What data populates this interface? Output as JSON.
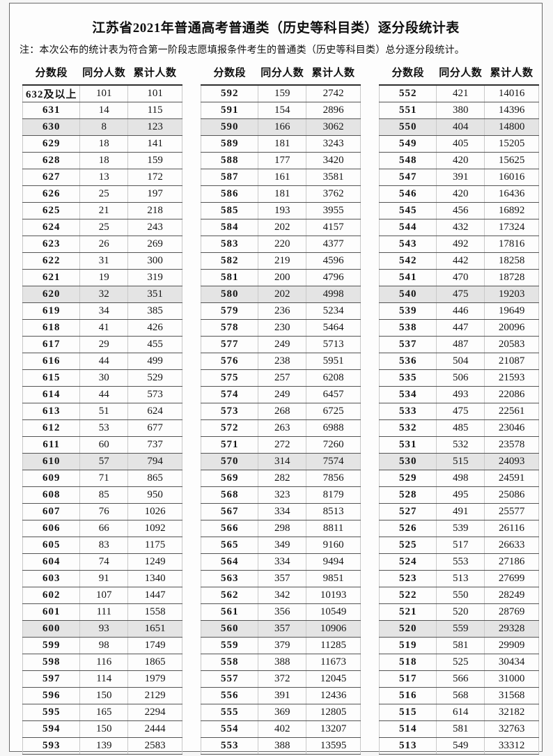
{
  "title": "江苏省2021年普通高考普通类（历史等科目类）逐分段统计表",
  "note": "注：本次公布的统计表为符合第一阶段志愿填报条件考生的普通类（历史等科目类）总分逐分段统计。",
  "columns": [
    "分数段",
    "同分人数",
    "累计人数"
  ],
  "colors": {
    "shaded_row": "#e4e4e4",
    "row_line": "#545454",
    "frame_border": "#6a6a6a",
    "text": "#141414"
  },
  "groups": [
    {
      "rows": [
        [
          "632及以上",
          101,
          101
        ],
        [
          "631",
          14,
          115
        ],
        [
          "630",
          8,
          123
        ],
        [
          "629",
          18,
          141
        ],
        [
          "628",
          18,
          159
        ],
        [
          "627",
          13,
          172
        ],
        [
          "626",
          25,
          197
        ],
        [
          "625",
          21,
          218
        ],
        [
          "624",
          25,
          243
        ],
        [
          "623",
          26,
          269
        ],
        [
          "622",
          31,
          300
        ],
        [
          "621",
          19,
          319
        ],
        [
          "620",
          32,
          351
        ],
        [
          "619",
          34,
          385
        ],
        [
          "618",
          41,
          426
        ],
        [
          "617",
          29,
          455
        ],
        [
          "616",
          44,
          499
        ],
        [
          "615",
          30,
          529
        ],
        [
          "614",
          44,
          573
        ],
        [
          "613",
          51,
          624
        ],
        [
          "612",
          53,
          677
        ],
        [
          "611",
          60,
          737
        ],
        [
          "610",
          57,
          794
        ],
        [
          "609",
          71,
          865
        ],
        [
          "608",
          85,
          950
        ],
        [
          "607",
          76,
          1026
        ],
        [
          "606",
          66,
          1092
        ],
        [
          "605",
          83,
          1175
        ],
        [
          "604",
          74,
          1249
        ],
        [
          "603",
          91,
          1340
        ],
        [
          "602",
          107,
          1447
        ],
        [
          "601",
          111,
          1558
        ],
        [
          "600",
          93,
          1651
        ],
        [
          "599",
          98,
          1749
        ],
        [
          "598",
          116,
          1865
        ],
        [
          "597",
          114,
          1979
        ],
        [
          "596",
          150,
          2129
        ],
        [
          "595",
          165,
          2294
        ],
        [
          "594",
          150,
          2444
        ],
        [
          "593",
          139,
          2583
        ]
      ]
    },
    {
      "rows": [
        [
          "592",
          159,
          2742
        ],
        [
          "591",
          154,
          2896
        ],
        [
          "590",
          166,
          3062
        ],
        [
          "589",
          181,
          3243
        ],
        [
          "588",
          177,
          3420
        ],
        [
          "587",
          161,
          3581
        ],
        [
          "586",
          181,
          3762
        ],
        [
          "585",
          193,
          3955
        ],
        [
          "584",
          202,
          4157
        ],
        [
          "583",
          220,
          4377
        ],
        [
          "582",
          219,
          4596
        ],
        [
          "581",
          200,
          4796
        ],
        [
          "580",
          202,
          4998
        ],
        [
          "579",
          236,
          5234
        ],
        [
          "578",
          230,
          5464
        ],
        [
          "577",
          249,
          5713
        ],
        [
          "576",
          238,
          5951
        ],
        [
          "575",
          257,
          6208
        ],
        [
          "574",
          249,
          6457
        ],
        [
          "573",
          268,
          6725
        ],
        [
          "572",
          263,
          6988
        ],
        [
          "571",
          272,
          7260
        ],
        [
          "570",
          314,
          7574
        ],
        [
          "569",
          282,
          7856
        ],
        [
          "568",
          323,
          8179
        ],
        [
          "567",
          334,
          8513
        ],
        [
          "566",
          298,
          8811
        ],
        [
          "565",
          349,
          9160
        ],
        [
          "564",
          334,
          9494
        ],
        [
          "563",
          357,
          9851
        ],
        [
          "562",
          342,
          10193
        ],
        [
          "561",
          356,
          10549
        ],
        [
          "560",
          357,
          10906
        ],
        [
          "559",
          379,
          11285
        ],
        [
          "558",
          388,
          11673
        ],
        [
          "557",
          372,
          12045
        ],
        [
          "556",
          391,
          12436
        ],
        [
          "555",
          369,
          12805
        ],
        [
          "554",
          402,
          13207
        ],
        [
          "553",
          388,
          13595
        ]
      ]
    },
    {
      "rows": [
        [
          "552",
          421,
          14016
        ],
        [
          "551",
          380,
          14396
        ],
        [
          "550",
          404,
          14800
        ],
        [
          "549",
          405,
          15205
        ],
        [
          "548",
          420,
          15625
        ],
        [
          "547",
          391,
          16016
        ],
        [
          "546",
          420,
          16436
        ],
        [
          "545",
          456,
          16892
        ],
        [
          "544",
          432,
          17324
        ],
        [
          "543",
          492,
          17816
        ],
        [
          "542",
          442,
          18258
        ],
        [
          "541",
          470,
          18728
        ],
        [
          "540",
          475,
          19203
        ],
        [
          "539",
          446,
          19649
        ],
        [
          "538",
          447,
          20096
        ],
        [
          "537",
          487,
          20583
        ],
        [
          "536",
          504,
          21087
        ],
        [
          "535",
          506,
          21593
        ],
        [
          "534",
          493,
          22086
        ],
        [
          "533",
          475,
          22561
        ],
        [
          "532",
          485,
          23046
        ],
        [
          "531",
          532,
          23578
        ],
        [
          "530",
          515,
          24093
        ],
        [
          "529",
          498,
          24591
        ],
        [
          "528",
          495,
          25086
        ],
        [
          "527",
          491,
          25577
        ],
        [
          "526",
          539,
          26116
        ],
        [
          "525",
          517,
          26633
        ],
        [
          "524",
          553,
          27186
        ],
        [
          "523",
          513,
          27699
        ],
        [
          "522",
          550,
          28249
        ],
        [
          "521",
          520,
          28769
        ],
        [
          "520",
          559,
          29328
        ],
        [
          "519",
          581,
          29909
        ],
        [
          "518",
          525,
          30434
        ],
        [
          "517",
          566,
          31000
        ],
        [
          "516",
          568,
          31568
        ],
        [
          "515",
          614,
          32182
        ],
        [
          "514",
          581,
          32763
        ],
        [
          "513",
          549,
          33312
        ]
      ]
    }
  ]
}
